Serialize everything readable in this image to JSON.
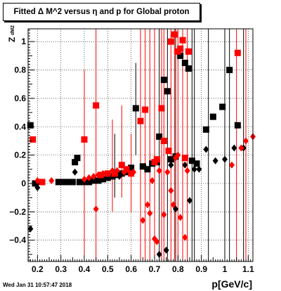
{
  "title": "Fitted Δ M^2 versus η and p for Global proton",
  "timestamp": "Wed Jan 31 10:57:47 2018",
  "chart_data": {
    "type": "scatter",
    "title": "Fitted Δ M^2 versus η and p for Global proton",
    "xlabel": "p[GeV/c]",
    "ylabel_main": "Z",
    "ylabel_sub": "dM2",
    "xlim": [
      0.16,
      1.12
    ],
    "ylim": [
      -0.55,
      1.09
    ],
    "grid": true,
    "x_ticks": [
      0.2,
      0.3,
      0.4,
      0.5,
      0.6,
      0.7,
      0.8,
      0.9,
      1,
      1.1
    ],
    "x_tick_labels": [
      "0.2",
      "0.3",
      "0.4",
      "0.5",
      "0.6",
      "0.7",
      "0.8",
      "0.9",
      "1",
      "1.1"
    ],
    "y_ticks": [
      -0.4,
      -0.2,
      0,
      0.2,
      0.4,
      0.6,
      0.8,
      1
    ],
    "y_tick_labels": [
      "−0.4",
      "−0.2",
      "0",
      "0.2",
      "0.4",
      "0.6",
      "0.8",
      "1"
    ],
    "colors": {
      "black": "#000000",
      "red": "#ff0000"
    },
    "series": [
      {
        "marker": "square",
        "color": "#000000",
        "points": [
          {
            "x": 0.17,
            "y": 0.41
          },
          {
            "x": 0.19,
            "y": 0.0
          },
          {
            "x": 0.21,
            "y": 0.01
          },
          {
            "x": 0.29,
            "y": 0.01
          },
          {
            "x": 0.31,
            "y": 0.01
          },
          {
            "x": 0.33,
            "y": 0.01
          },
          {
            "x": 0.35,
            "y": 0.01
          },
          {
            "x": 0.36,
            "y": 0.15
          },
          {
            "x": 0.37,
            "y": 0.18
          },
          {
            "x": 0.38,
            "y": 0.01
          },
          {
            "x": 0.4,
            "y": 0.01
          },
          {
            "x": 0.42,
            "y": 0.01
          },
          {
            "x": 0.44,
            "y": 0.02
          },
          {
            "x": 0.46,
            "y": 0.02
          },
          {
            "x": 0.48,
            "y": 0.03
          },
          {
            "x": 0.5,
            "y": 0.04
          },
          {
            "x": 0.52,
            "y": 0.05
          },
          {
            "x": 0.54,
            "y": 0.06
          },
          {
            "x": 0.56,
            "y": 0.07
          },
          {
            "x": 0.58,
            "y": 0.08
          },
          {
            "x": 0.6,
            "y": 0.11
          },
          {
            "x": 0.62,
            "y": 0.53
          },
          {
            "x": 0.65,
            "y": 0.12
          },
          {
            "x": 0.67,
            "y": 0.1
          },
          {
            "x": 0.69,
            "y": 0.14
          },
          {
            "x": 0.71,
            "y": 0.15
          },
          {
            "x": 0.72,
            "y": 0.33
          },
          {
            "x": 0.74,
            "y": 0.73
          },
          {
            "x": 0.755,
            "y": 0.65
          },
          {
            "x": 0.77,
            "y": 0.17
          },
          {
            "x": 0.79,
            "y": 0.19
          },
          {
            "x": 0.81,
            "y": 0.9
          },
          {
            "x": 0.83,
            "y": 0.85
          },
          {
            "x": 0.845,
            "y": 0.81
          },
          {
            "x": 0.86,
            "y": 0.16
          },
          {
            "x": 0.88,
            "y": 0.14
          },
          {
            "x": 0.92,
            "y": 0.38
          },
          {
            "x": 0.95,
            "y": 0.47
          },
          {
            "x": 0.99,
            "y": 0.54
          },
          {
            "x": 1.02,
            "y": 0.8
          },
          {
            "x": 1.055,
            "y": 0.41
          }
        ]
      },
      {
        "marker": "diamond",
        "color": "#000000",
        "points": [
          {
            "x": 0.17,
            "y": -0.32
          },
          {
            "x": 0.2,
            "y": -0.03
          },
          {
            "x": 0.36,
            "y": 0.08
          },
          {
            "x": 0.55,
            "y": 0.05
          },
          {
            "x": 0.66,
            "y": 0.11
          },
          {
            "x": 0.72,
            "y": -0.5
          },
          {
            "x": 0.75,
            "y": -0.47
          },
          {
            "x": 0.77,
            "y": 0.13
          },
          {
            "x": 0.79,
            "y": -0.18
          },
          {
            "x": 0.83,
            "y": 0.13
          },
          {
            "x": 0.85,
            "y": -0.12
          },
          {
            "x": 0.87,
            "y": 0.1
          },
          {
            "x": 0.89,
            "y": 0.1
          },
          {
            "x": 0.92,
            "y": 0.24
          },
          {
            "x": 0.96,
            "y": 0.16
          },
          {
            "x": 1.0,
            "y": 0.17
          },
          {
            "x": 1.04,
            "y": 0.25
          },
          {
            "x": 1.08,
            "y": 0.25
          }
        ]
      },
      {
        "marker": "square",
        "color": "#ff0000",
        "points": [
          {
            "x": 0.18,
            "y": 0.31
          },
          {
            "x": 0.22,
            "y": 0.01
          },
          {
            "x": 0.4,
            "y": 0.31
          },
          {
            "x": 0.45,
            "y": 0.55
          },
          {
            "x": 0.47,
            "y": 0.06
          },
          {
            "x": 0.5,
            "y": 0.07
          },
          {
            "x": 0.53,
            "y": 0.07
          },
          {
            "x": 0.56,
            "y": 0.13
          },
          {
            "x": 0.58,
            "y": 0.1
          },
          {
            "x": 0.6,
            "y": 0.07
          },
          {
            "x": 0.64,
            "y": 0.44
          },
          {
            "x": 0.66,
            "y": 0.52
          },
          {
            "x": 0.7,
            "y": 0.15
          },
          {
            "x": 0.71,
            "y": 0.17
          },
          {
            "x": 0.73,
            "y": 0.53
          },
          {
            "x": 0.74,
            "y": 0.3
          },
          {
            "x": 0.76,
            "y": 0.23
          },
          {
            "x": 0.77,
            "y": 1.0
          },
          {
            "x": 0.785,
            "y": 1.05
          },
          {
            "x": 0.8,
            "y": 0.93
          },
          {
            "x": 0.81,
            "y": 0.95
          },
          {
            "x": 0.82,
            "y": 1.01
          },
          {
            "x": 0.83,
            "y": 0.18
          },
          {
            "x": 0.845,
            "y": 0.93
          },
          {
            "x": 1.055,
            "y": 0.92
          }
        ]
      },
      {
        "marker": "diamond",
        "color": "#ff0000",
        "points": [
          {
            "x": 0.2,
            "y": 0.02
          },
          {
            "x": 0.26,
            "y": 0.02
          },
          {
            "x": 0.4,
            "y": 0.03
          },
          {
            "x": 0.42,
            "y": 0.04
          },
          {
            "x": 0.44,
            "y": 0.05
          },
          {
            "x": 0.45,
            "y": -0.18
          },
          {
            "x": 0.46,
            "y": 0.06
          },
          {
            "x": 0.48,
            "y": 0.07
          },
          {
            "x": 0.52,
            "y": 0.09
          },
          {
            "x": 0.54,
            "y": 0.09
          },
          {
            "x": 0.57,
            "y": 0.08
          },
          {
            "x": 0.61,
            "y": 0.08
          },
          {
            "x": 0.65,
            "y": -0.26
          },
          {
            "x": 0.67,
            "y": -0.15
          },
          {
            "x": 0.68,
            "y": -0.21
          },
          {
            "x": 0.69,
            "y": 0.02
          },
          {
            "x": 0.7,
            "y": -0.39
          },
          {
            "x": 0.71,
            "y": -0.41
          },
          {
            "x": 0.72,
            "y": 0.09
          },
          {
            "x": 0.74,
            "y": -0.22
          },
          {
            "x": 0.755,
            "y": 0.08
          },
          {
            "x": 0.77,
            "y": -0.05
          },
          {
            "x": 0.78,
            "y": -0.15
          },
          {
            "x": 0.79,
            "y": 0.18
          },
          {
            "x": 0.8,
            "y": 0.2
          },
          {
            "x": 0.81,
            "y": -0.24
          },
          {
            "x": 0.83,
            "y": -0.38
          },
          {
            "x": 0.84,
            "y": 0.09
          },
          {
            "x": 1.03,
            "y": 0.13
          },
          {
            "x": 1.07,
            "y": 0.25
          },
          {
            "x": 1.09,
            "y": 0.3
          },
          {
            "x": 1.12,
            "y": 0.33
          }
        ]
      }
    ],
    "error_bars": [
      {
        "color": "#ff0000",
        "x": 0.4,
        "ylo": -0.55,
        "yhi": 0.8
      },
      {
        "color": "#ff0000",
        "x": 0.45,
        "ylo": -0.55,
        "yhi": 1.09
      },
      {
        "color": "#ff0000",
        "x": 0.52,
        "ylo": -0.2,
        "yhi": 0.45
      },
      {
        "color": "#000000",
        "x": 0.53,
        "ylo": -0.1,
        "yhi": 0.35
      },
      {
        "color": "#ff0000",
        "x": 0.56,
        "ylo": -0.1,
        "yhi": 0.55
      },
      {
        "color": "#ff0000",
        "x": 0.6,
        "ylo": -0.2,
        "yhi": 0.35
      },
      {
        "color": "#000000",
        "x": 0.62,
        "ylo": 0.2,
        "yhi": 0.85
      },
      {
        "color": "#ff0000",
        "x": 0.64,
        "ylo": -0.55,
        "yhi": 1.09
      },
      {
        "color": "#ff0000",
        "x": 0.66,
        "ylo": -0.55,
        "yhi": 1.09
      },
      {
        "color": "#ff0000",
        "x": 0.68,
        "ylo": -0.55,
        "yhi": 1.09
      },
      {
        "color": "#ff0000",
        "x": 0.7,
        "ylo": -0.55,
        "yhi": 1.09
      },
      {
        "color": "#000000",
        "x": 0.72,
        "ylo": -0.55,
        "yhi": 1.09
      },
      {
        "color": "#ff0000",
        "x": 0.73,
        "ylo": -0.55,
        "yhi": 1.09
      },
      {
        "color": "#ff0000",
        "x": 0.74,
        "ylo": -0.55,
        "yhi": 1.09
      },
      {
        "color": "#000000",
        "x": 0.755,
        "ylo": -0.55,
        "yhi": 1.09
      },
      {
        "color": "#ff0000",
        "x": 0.77,
        "ylo": -0.55,
        "yhi": 1.09
      },
      {
        "color": "#ff0000",
        "x": 0.785,
        "ylo": -0.55,
        "yhi": 1.09
      },
      {
        "color": "#000000",
        "x": 0.79,
        "ylo": -0.55,
        "yhi": 1.09
      },
      {
        "color": "#ff0000",
        "x": 0.8,
        "ylo": -0.55,
        "yhi": 1.09
      },
      {
        "color": "#ff0000",
        "x": 0.82,
        "ylo": -0.55,
        "yhi": 1.09
      },
      {
        "color": "#ff0000",
        "x": 0.84,
        "ylo": -0.55,
        "yhi": 1.09
      },
      {
        "color": "#000000",
        "x": 0.86,
        "ylo": -0.55,
        "yhi": 1.09
      },
      {
        "color": "#000000",
        "x": 0.87,
        "ylo": -0.55,
        "yhi": 1.09
      },
      {
        "color": "#000000",
        "x": 0.93,
        "ylo": -0.55,
        "yhi": 1.09
      },
      {
        "color": "#000000",
        "x": 1.0,
        "ylo": -0.55,
        "yhi": 1.09
      },
      {
        "color": "#000000",
        "x": 1.02,
        "ylo": -0.55,
        "yhi": 1.09
      },
      {
        "color": "#ff0000",
        "x": 1.05,
        "ylo": -0.55,
        "yhi": 1.09
      },
      {
        "color": "#000000",
        "x": 1.08,
        "ylo": -0.55,
        "yhi": 1.09
      },
      {
        "color": "#ff0000",
        "x": 1.09,
        "ylo": -0.55,
        "yhi": 1.09
      }
    ]
  }
}
